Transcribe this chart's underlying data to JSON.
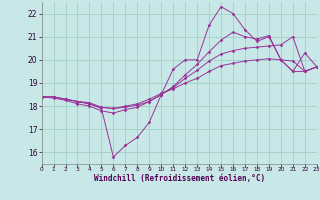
{
  "xlabel": "Windchill (Refroidissement éolien,°C)",
  "bg_color": "#c8e8e8",
  "grid_color": "#99ccbb",
  "line_color": "#993399",
  "xlim": [
    0,
    23
  ],
  "ylim": [
    15.5,
    22.5
  ],
  "xticks": [
    0,
    1,
    2,
    3,
    4,
    5,
    6,
    7,
    8,
    9,
    10,
    11,
    12,
    13,
    14,
    15,
    16,
    17,
    18,
    19,
    20,
    21,
    22,
    23
  ],
  "yticks": [
    16,
    17,
    18,
    19,
    20,
    21,
    22
  ],
  "series": [
    {
      "x": [
        0,
        1,
        2,
        3,
        4,
        5,
        6,
        7,
        8,
        9,
        10,
        11,
        12,
        13,
        14,
        15,
        16,
        17,
        18,
        19,
        20,
        21,
        22,
        23
      ],
      "y": [
        18.4,
        18.4,
        18.3,
        18.2,
        18.1,
        17.9,
        15.8,
        16.3,
        16.65,
        17.3,
        18.5,
        19.6,
        20.0,
        20.0,
        21.5,
        22.3,
        22.0,
        21.3,
        20.8,
        21.0,
        20.0,
        19.5,
        20.3,
        19.7
      ]
    },
    {
      "x": [
        0,
        1,
        2,
        3,
        4,
        5,
        6,
        7,
        8,
        9,
        10,
        11,
        12,
        13,
        14,
        15,
        16,
        17,
        18,
        19,
        20,
        21,
        22,
        23
      ],
      "y": [
        18.4,
        18.4,
        18.3,
        18.2,
        18.15,
        17.95,
        17.9,
        18.0,
        18.1,
        18.3,
        18.55,
        18.75,
        19.0,
        19.2,
        19.5,
        19.75,
        19.85,
        19.95,
        20.0,
        20.05,
        20.0,
        19.95,
        19.5,
        19.7
      ]
    },
    {
      "x": [
        0,
        1,
        2,
        3,
        4,
        5,
        6,
        7,
        8,
        9,
        10,
        11,
        12,
        13,
        14,
        15,
        16,
        17,
        18,
        19,
        20,
        21,
        22,
        23
      ],
      "y": [
        18.4,
        18.4,
        18.3,
        18.2,
        18.1,
        17.95,
        17.9,
        17.95,
        18.05,
        18.2,
        18.5,
        18.8,
        19.2,
        19.55,
        19.95,
        20.25,
        20.4,
        20.5,
        20.55,
        20.6,
        20.65,
        21.0,
        19.5,
        19.7
      ]
    },
    {
      "x": [
        0,
        1,
        2,
        3,
        4,
        5,
        6,
        7,
        8,
        9,
        10,
        11,
        12,
        13,
        14,
        15,
        16,
        17,
        18,
        19,
        20,
        21,
        22,
        23
      ],
      "y": [
        18.4,
        18.35,
        18.25,
        18.1,
        18.0,
        17.8,
        17.7,
        17.85,
        17.95,
        18.2,
        18.5,
        18.85,
        19.35,
        19.8,
        20.35,
        20.85,
        21.2,
        21.0,
        20.9,
        21.05,
        20.0,
        19.5,
        19.5,
        19.7
      ]
    }
  ]
}
